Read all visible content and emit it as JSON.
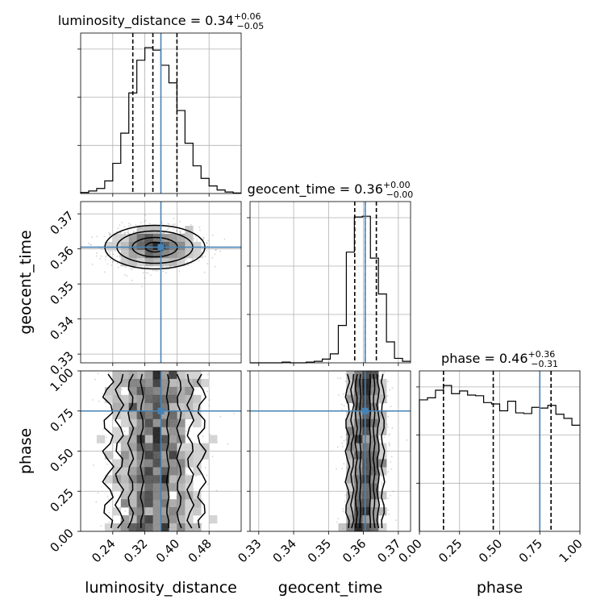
{
  "chart_data": {
    "type": "corner",
    "parameters": [
      "luminosity_distance",
      "geocent_time",
      "phase"
    ],
    "truth": {
      "luminosity_distance": 0.36,
      "geocent_time": 0.3605,
      "phase": 0.75
    },
    "grid": true,
    "panels": {
      "luminosity_distance": {
        "title": {
          "prefix": "luminosity_distance = 0.34",
          "plus": "+0.06",
          "minus": "−0.05"
        },
        "xlim": [
          0.16,
          0.56
        ],
        "ticks": [
          0.24,
          0.32,
          0.4,
          0.48
        ],
        "tick_labels": [
          "0.24",
          "0.32",
          "0.40",
          "0.48"
        ],
        "quantiles": [
          0.29,
          0.34,
          0.4
        ],
        "hist": {
          "bin_edges": [
            0.16,
            0.18,
            0.2,
            0.22,
            0.24,
            0.26,
            0.28,
            0.3,
            0.32,
            0.34,
            0.36,
            0.38,
            0.4,
            0.42,
            0.44,
            0.46,
            0.48,
            0.5,
            0.52,
            0.54,
            0.56
          ],
          "counts": [
            2,
            5,
            10,
            25,
            60,
            120,
            200,
            265,
            290,
            285,
            255,
            220,
            165,
            100,
            55,
            30,
            15,
            7,
            3,
            1
          ]
        }
      },
      "geocent_time": {
        "title": {
          "prefix": "geocent_time = 0.36",
          "plus": "+0.00",
          "minus": "−0.00"
        },
        "xlim": [
          0.3275,
          0.3735
        ],
        "ticks": [
          0.33,
          0.34,
          0.35,
          0.36,
          0.37
        ],
        "tick_labels": [
          "0.33",
          "0.34",
          "0.35",
          "0.36",
          "0.37"
        ],
        "quantiles": [
          0.3575,
          0.3605,
          0.3637
        ],
        "hist": {
          "bin_edges": [
            0.3275,
            0.3298,
            0.3321,
            0.3344,
            0.3367,
            0.339,
            0.3413,
            0.3436,
            0.3459,
            0.3482,
            0.3505,
            0.3528,
            0.3551,
            0.3574,
            0.3597,
            0.362,
            0.3643,
            0.3666,
            0.3689,
            0.3712,
            0.3735
          ],
          "counts": [
            0,
            0,
            0,
            0,
            1,
            0,
            0,
            1,
            2,
            5,
            12,
            50,
            148,
            195,
            196,
            140,
            92,
            28,
            6,
            2
          ]
        }
      },
      "phase": {
        "title": {
          "prefix": "phase = 0.46",
          "plus": "+0.36",
          "minus": "−0.31"
        },
        "xlim": [
          0.0,
          1.0
        ],
        "ticks": [
          0.0,
          0.25,
          0.5,
          0.75,
          1.0
        ],
        "tick_labels": [
          "0.00",
          "0.25",
          "0.50",
          "0.75",
          "1.00"
        ],
        "quantiles": [
          0.15,
          0.46,
          0.82
        ],
        "hist": {
          "bin_edges": [
            0.0,
            0.05,
            0.1,
            0.15,
            0.2,
            0.25,
            0.3,
            0.35,
            0.4,
            0.45,
            0.5,
            0.55,
            0.6,
            0.65,
            0.7,
            0.75,
            0.8,
            0.85,
            0.9,
            0.95,
            1.0
          ],
          "counts": [
            192,
            195,
            206,
            213,
            201,
            205,
            199,
            198,
            188,
            186,
            176,
            190,
            173,
            172,
            181,
            180,
            184,
            171,
            165,
            155
          ]
        }
      }
    },
    "y_axes": {
      "geocent_time": {
        "ylim": [
          0.3275,
          0.3735
        ],
        "ticks": [
          0.33,
          0.34,
          0.35,
          0.36,
          0.37
        ],
        "tick_labels": [
          "0.33",
          "0.34",
          "0.35",
          "0.36",
          "0.37"
        ]
      },
      "phase": {
        "ylim": [
          0.0,
          1.0
        ],
        "ticks": [
          0.0,
          0.25,
          0.5,
          0.75,
          1.0
        ],
        "tick_labels": [
          "0.00",
          "0.25",
          "0.50",
          "0.75",
          "1.00"
        ]
      }
    },
    "xlabels": [
      "luminosity_distance",
      "geocent_time",
      "phase"
    ],
    "ylabels": [
      "geocent_time",
      "phase"
    ],
    "colors": {
      "truth": "#4682b4",
      "hist": "#000000",
      "quantile": "#000000",
      "scatter": "#808080"
    }
  }
}
